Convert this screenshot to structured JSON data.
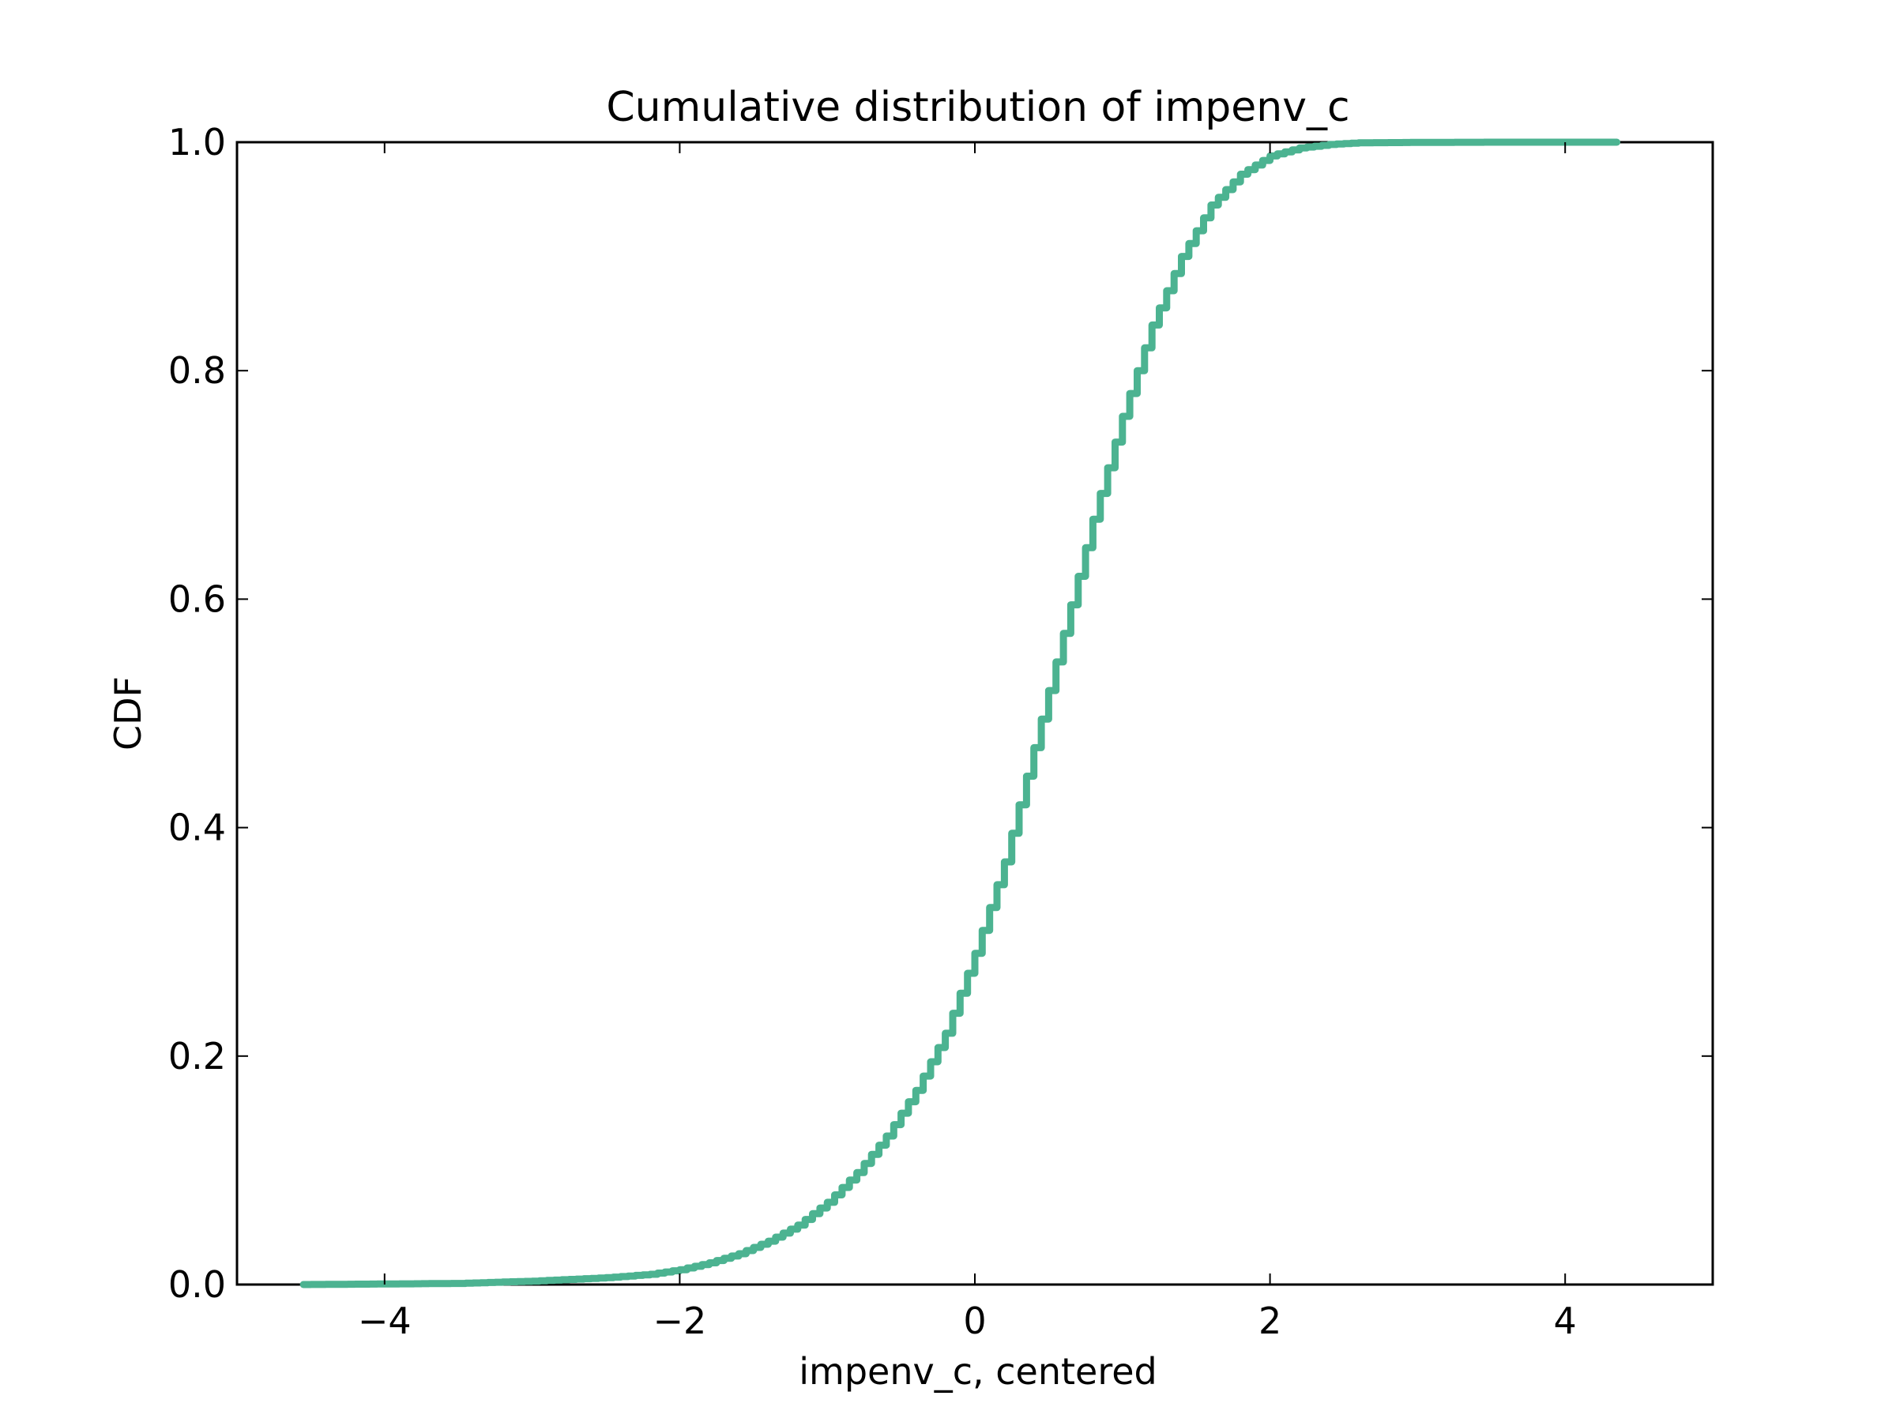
{
  "chart_data": {
    "type": "line",
    "title": "Cumulative distribution of impenv_c",
    "xlabel": "impenv_c, centered",
    "ylabel": "CDF",
    "xlim": [
      -5,
      5
    ],
    "ylim": [
      0.0,
      1.0
    ],
    "xticks": [
      -4,
      -2,
      0,
      2,
      4
    ],
    "xtick_labels": [
      "−4",
      "−2",
      "0",
      "2",
      "4"
    ],
    "yticks": [
      0.0,
      0.2,
      0.4,
      0.6,
      0.8,
      1.0
    ],
    "ytick_labels": [
      "0.0",
      "0.2",
      "0.4",
      "0.6",
      "0.8",
      "1.0"
    ],
    "grid": false,
    "line_color": "#4cb391",
    "series": [
      {
        "step": true,
        "x": [
          -4.55,
          -4.0,
          -3.5,
          -3.0,
          -2.5,
          -2.2,
          -2.0,
          -1.8,
          -1.6,
          -1.4,
          -1.2,
          -1.0,
          -0.8,
          -0.6,
          -0.4,
          -0.2,
          0.0,
          0.2,
          0.4,
          0.6,
          0.8,
          1.0,
          1.2,
          1.4,
          1.6,
          1.8,
          2.0,
          2.2,
          2.4,
          2.6,
          3.0,
          3.5,
          4.35
        ],
        "y": [
          0.0,
          0.0005,
          0.001,
          0.003,
          0.006,
          0.009,
          0.013,
          0.019,
          0.027,
          0.038,
          0.052,
          0.072,
          0.098,
          0.13,
          0.17,
          0.22,
          0.29,
          0.37,
          0.47,
          0.57,
          0.67,
          0.76,
          0.84,
          0.9,
          0.945,
          0.972,
          0.988,
          0.995,
          0.998,
          0.9995,
          0.9998,
          1.0,
          1.0
        ]
      }
    ]
  }
}
